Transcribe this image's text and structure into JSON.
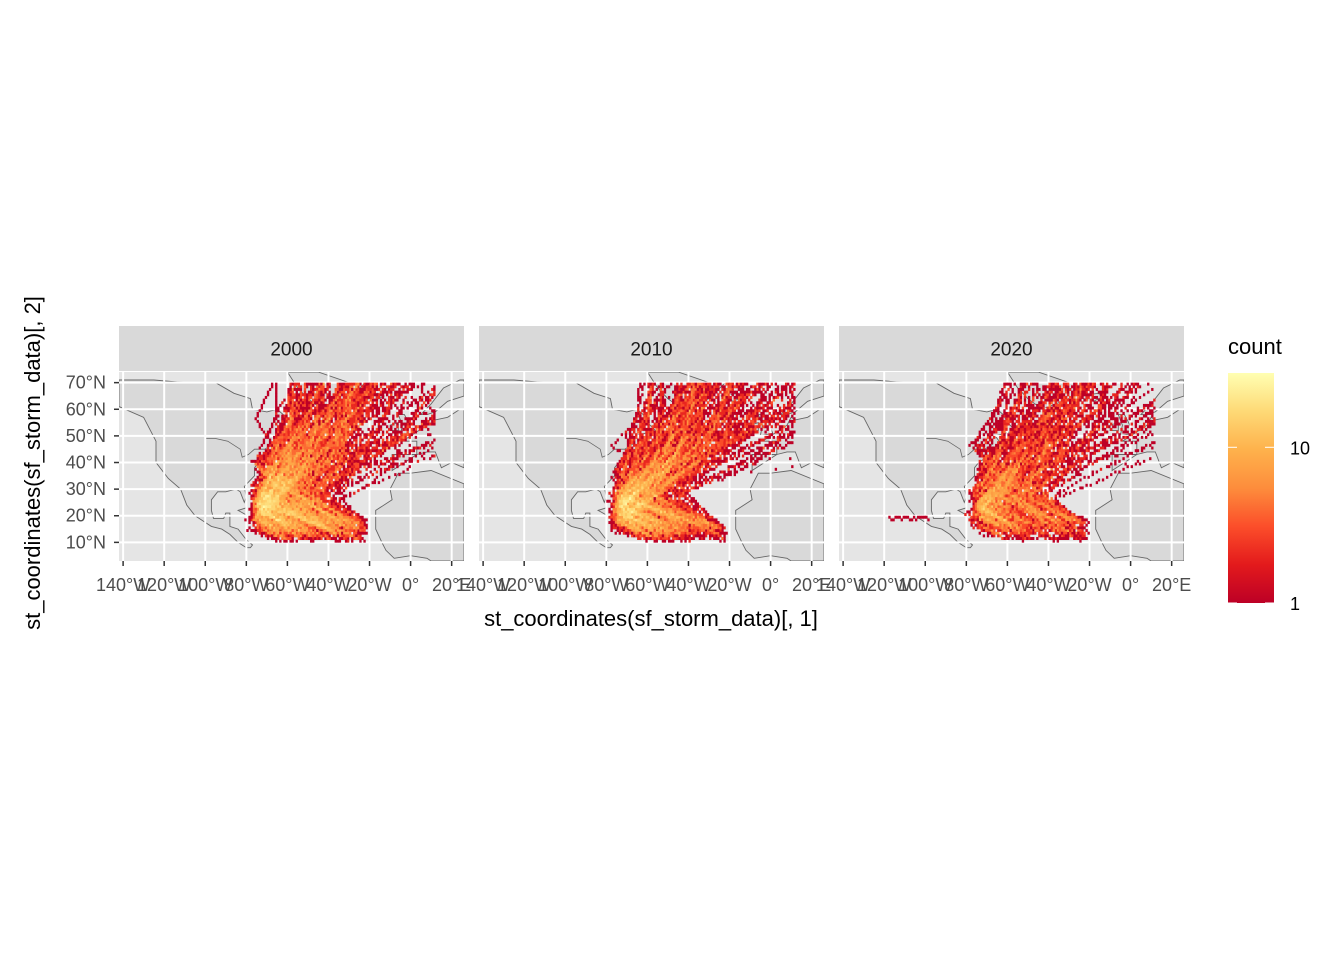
{
  "chart_data": {
    "type": "heatmap",
    "title": "",
    "xlabel": "st_coordinates(sf_storm_data)[, 1]",
    "ylabel": "st_coordinates(sf_storm_data)[, 2]",
    "facets": [
      {
        "label": "2000",
        "density": 1.0
      },
      {
        "label": "2010",
        "density": 0.85
      },
      {
        "label": "2020",
        "density": 0.6
      }
    ],
    "xlim": [
      -142,
      26
    ],
    "ylim": [
      3,
      74
    ],
    "x_ticks": [
      {
        "value": -140,
        "label": "140°W"
      },
      {
        "value": -120,
        "label": "120°W"
      },
      {
        "value": -100,
        "label": "100°W"
      },
      {
        "value": -80,
        "label": "80°W"
      },
      {
        "value": -60,
        "label": "60°W"
      },
      {
        "value": -40,
        "label": "40°W"
      },
      {
        "value": -20,
        "label": "20°W"
      },
      {
        "value": 0,
        "label": "0°"
      },
      {
        "value": 20,
        "label": "20°E"
      }
    ],
    "y_ticks": [
      {
        "value": 10,
        "label": "10°N"
      },
      {
        "value": 20,
        "label": "20°N"
      },
      {
        "value": 30,
        "label": "30°N"
      },
      {
        "value": 40,
        "label": "40°N"
      },
      {
        "value": 50,
        "label": "50°N"
      },
      {
        "value": 60,
        "label": "60°N"
      },
      {
        "value": 70,
        "label": "70°N"
      }
    ],
    "legend": {
      "title": "count",
      "scale": "log",
      "range": [
        1,
        30
      ],
      "breaks": [
        {
          "value": 1,
          "label": "1"
        },
        {
          "value": 10,
          "label": "10"
        }
      ],
      "placement": "right",
      "colors": [
        "#bd0026",
        "#e31a1c",
        "#fc4e2a",
        "#fd8d3c",
        "#feb24c",
        "#fed976",
        "#ffffb2"
      ]
    },
    "colors": {
      "panel_bg": "#e5e5e5",
      "grid": "#ffffff",
      "strip_bg": "#d9d9d9",
      "land_fill": "#d9d9d9",
      "land_border": "#666666",
      "axis_text": "#4d4d4d"
    },
    "grid": true
  }
}
